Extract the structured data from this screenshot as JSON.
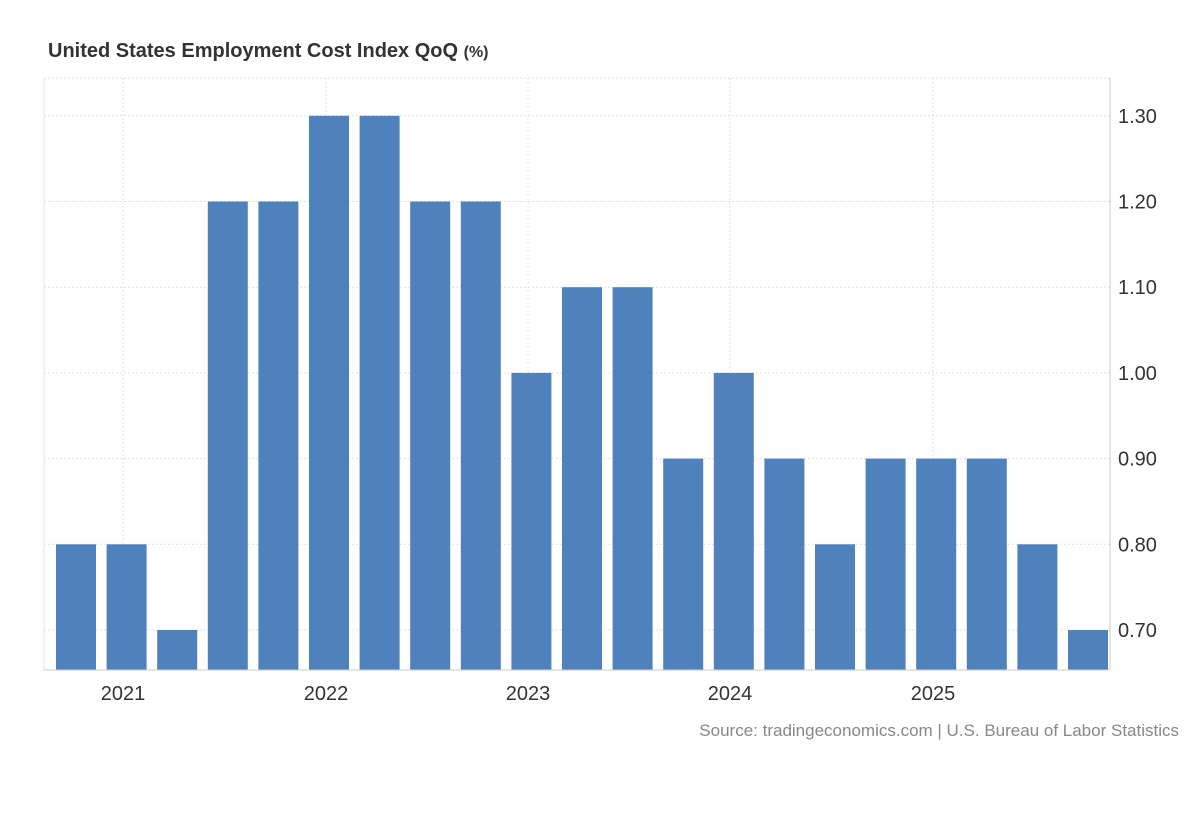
{
  "chart_data": {
    "type": "bar",
    "title": "United States Employment Cost Index QoQ",
    "title_unit": "(%)",
    "source": "Source: tradingeconomics.com | U.S. Bureau of Labor Statistics",
    "values": [
      0.8,
      0.8,
      0.7,
      1.2,
      1.2,
      1.3,
      1.3,
      1.2,
      1.2,
      1.0,
      1.1,
      1.1,
      0.9,
      1.0,
      0.9,
      0.8,
      0.9,
      0.9,
      0.9,
      0.8,
      0.7
    ],
    "x_tick_labels": [
      "2021",
      "2022",
      "2023",
      "2024",
      "2025"
    ],
    "y_tick_labels": [
      "0.70",
      "0.80",
      "0.90",
      "1.00",
      "1.10",
      "1.20",
      "1.30"
    ],
    "ylim": [
      0.653,
      1.345
    ],
    "y_axis_position": "right",
    "grid": true,
    "colors": {
      "bar": "#4f81bd",
      "grid": "#e0e0e0",
      "text": "#333333",
      "source": "#888888"
    }
  }
}
